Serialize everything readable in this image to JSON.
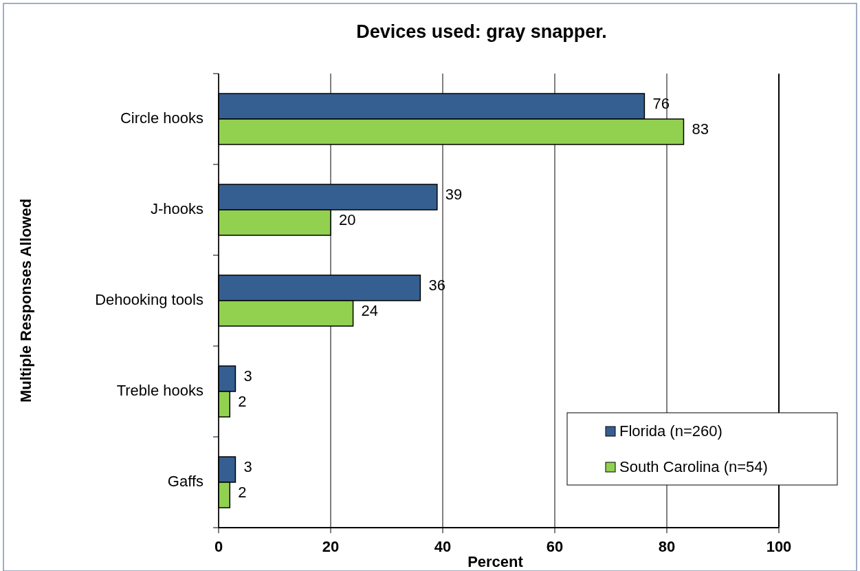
{
  "chart_data": {
    "type": "bar",
    "orientation": "horizontal",
    "title": "Devices used: gray snapper.",
    "xlabel": "Percent",
    "ylabel": "Multiple Responses Allowed",
    "categories": [
      "Circle hooks",
      "J-hooks",
      "Dehooking tools",
      "Treble hooks",
      "Gaffs"
    ],
    "series": [
      {
        "name": "Florida (n=260)",
        "color": "#355f91",
        "values": [
          76,
          39,
          36,
          3,
          3
        ]
      },
      {
        "name": "South Carolina (n=54)",
        "color": "#92d050",
        "values": [
          83,
          20,
          24,
          2,
          2
        ]
      }
    ],
    "xlim": [
      0,
      100
    ],
    "xticks": [
      0,
      20,
      40,
      60,
      80,
      100
    ],
    "grid": "x",
    "legend": "bottom right",
    "data_labels": true
  }
}
